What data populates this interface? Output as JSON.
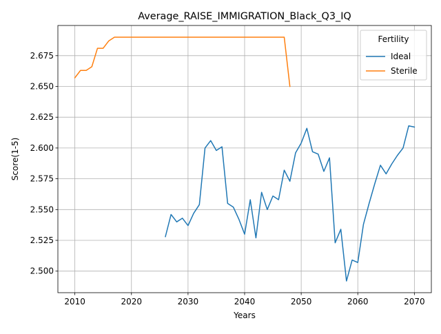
{
  "chart_data": {
    "type": "line",
    "title": "Average_RAISE_IMMIGRATION_Black_Q3_IQ",
    "xlabel": "Years",
    "ylabel": "Score(1-5)",
    "xlim": [
      2007,
      2073
    ],
    "ylim": [
      2.4825,
      2.6995
    ],
    "x_ticks": [
      2010,
      2020,
      2030,
      2040,
      2050,
      2060,
      2070
    ],
    "x_tick_labels": [
      "2010",
      "2020",
      "2030",
      "2040",
      "2050",
      "2060",
      "2070"
    ],
    "y_ticks": [
      2.5,
      2.525,
      2.55,
      2.575,
      2.6,
      2.625,
      2.65,
      2.675
    ],
    "y_tick_labels": [
      "2.500",
      "2.525",
      "2.550",
      "2.575",
      "2.600",
      "2.625",
      "2.650",
      "2.675"
    ],
    "grid": true,
    "legend": {
      "title": "Fertility",
      "position": "top-right"
    },
    "series": [
      {
        "name": "Ideal",
        "color": "#1f77b4",
        "x": [
          2026,
          2027,
          2028,
          2029,
          2030,
          2031,
          2032,
          2033,
          2034,
          2035,
          2036,
          2037,
          2038,
          2039,
          2040,
          2041,
          2042,
          2043,
          2044,
          2045,
          2046,
          2047,
          2048,
          2049,
          2050,
          2051,
          2052,
          2053,
          2054,
          2055,
          2056,
          2057,
          2058,
          2059,
          2060,
          2061,
          2062,
          2063,
          2064,
          2065,
          2066,
          2067,
          2068,
          2069,
          2070
        ],
        "y": [
          2.528,
          2.546,
          2.54,
          2.543,
          2.537,
          2.547,
          2.554,
          2.6,
          2.606,
          2.598,
          2.601,
          2.555,
          2.552,
          2.542,
          2.53,
          2.558,
          2.527,
          2.564,
          2.55,
          2.561,
          2.558,
          2.582,
          2.573,
          2.596,
          2.604,
          2.616,
          2.597,
          2.595,
          2.581,
          2.592,
          2.523,
          2.534,
          2.492,
          2.509,
          2.507,
          2.538,
          2.555,
          2.571,
          2.586,
          2.579,
          2.587,
          2.594,
          2.6,
          2.618,
          2.617
        ]
      },
      {
        "name": "Sterile",
        "color": "#ff7f0e",
        "x": [
          2010,
          2011,
          2012,
          2013,
          2014,
          2015,
          2016,
          2017,
          2018,
          2019,
          2020,
          2021,
          2022,
          2023,
          2024,
          2025,
          2026,
          2027,
          2028,
          2029,
          2030,
          2031,
          2032,
          2033,
          2034,
          2035,
          2036,
          2037,
          2038,
          2039,
          2040,
          2041,
          2042,
          2043,
          2044,
          2045,
          2046,
          2047,
          2048
        ],
        "y": [
          2.657,
          2.663,
          2.663,
          2.666,
          2.681,
          2.681,
          2.687,
          2.69,
          2.69,
          2.69,
          2.69,
          2.69,
          2.69,
          2.69,
          2.69,
          2.69,
          2.69,
          2.69,
          2.69,
          2.69,
          2.69,
          2.69,
          2.69,
          2.69,
          2.69,
          2.69,
          2.69,
          2.69,
          2.69,
          2.69,
          2.69,
          2.69,
          2.69,
          2.69,
          2.69,
          2.69,
          2.69,
          2.69,
          2.65
        ]
      }
    ]
  }
}
